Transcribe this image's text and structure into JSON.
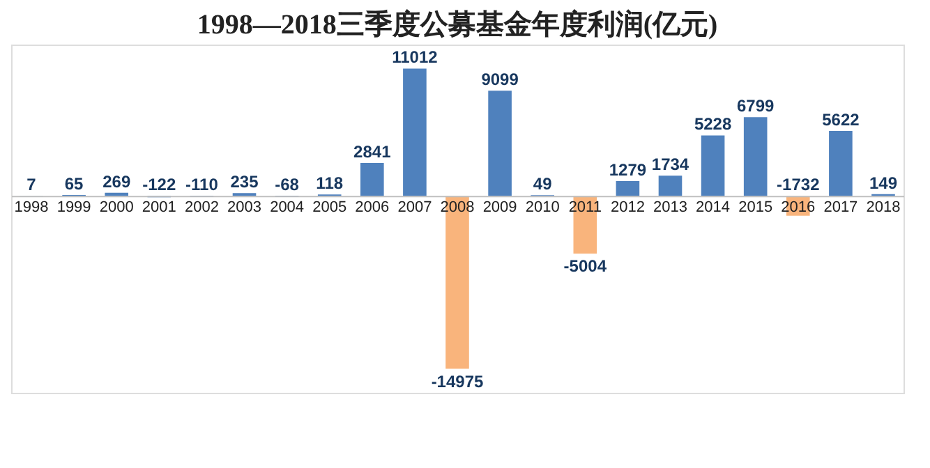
{
  "chart_data": {
    "type": "bar",
    "title": "1998—2018三季度公募基金年度利润(亿元)",
    "categories": [
      "1998",
      "1999",
      "2000",
      "2001",
      "2002",
      "2003",
      "2004",
      "2005",
      "2006",
      "2007",
      "2008",
      "2009",
      "2010",
      "2011",
      "2012",
      "2013",
      "2014",
      "2015",
      "2016",
      "2017",
      "2018"
    ],
    "values": [
      7,
      65,
      269,
      -122,
      -110,
      235,
      -68,
      118,
      2841,
      11012,
      -14975,
      9099,
      49,
      -5004,
      1279,
      1734,
      5228,
      6799,
      -1732,
      5622,
      149
    ],
    "colors": [
      "#4f81bd",
      "#4f81bd",
      "#4f81bd",
      "#4f81bd",
      "#4f81bd",
      "#4f81bd",
      "#4f81bd",
      "#4f81bd",
      "#4f81bd",
      "#4f81bd",
      "#f9b47c",
      "#4f81bd",
      "#4f81bd",
      "#f9b47c",
      "#4f81bd",
      "#4f81bd",
      "#4f81bd",
      "#4f81bd",
      "#f9b47c",
      "#4f81bd",
      "#4f81bd"
    ],
    "data_labels": true,
    "grid": false
  }
}
